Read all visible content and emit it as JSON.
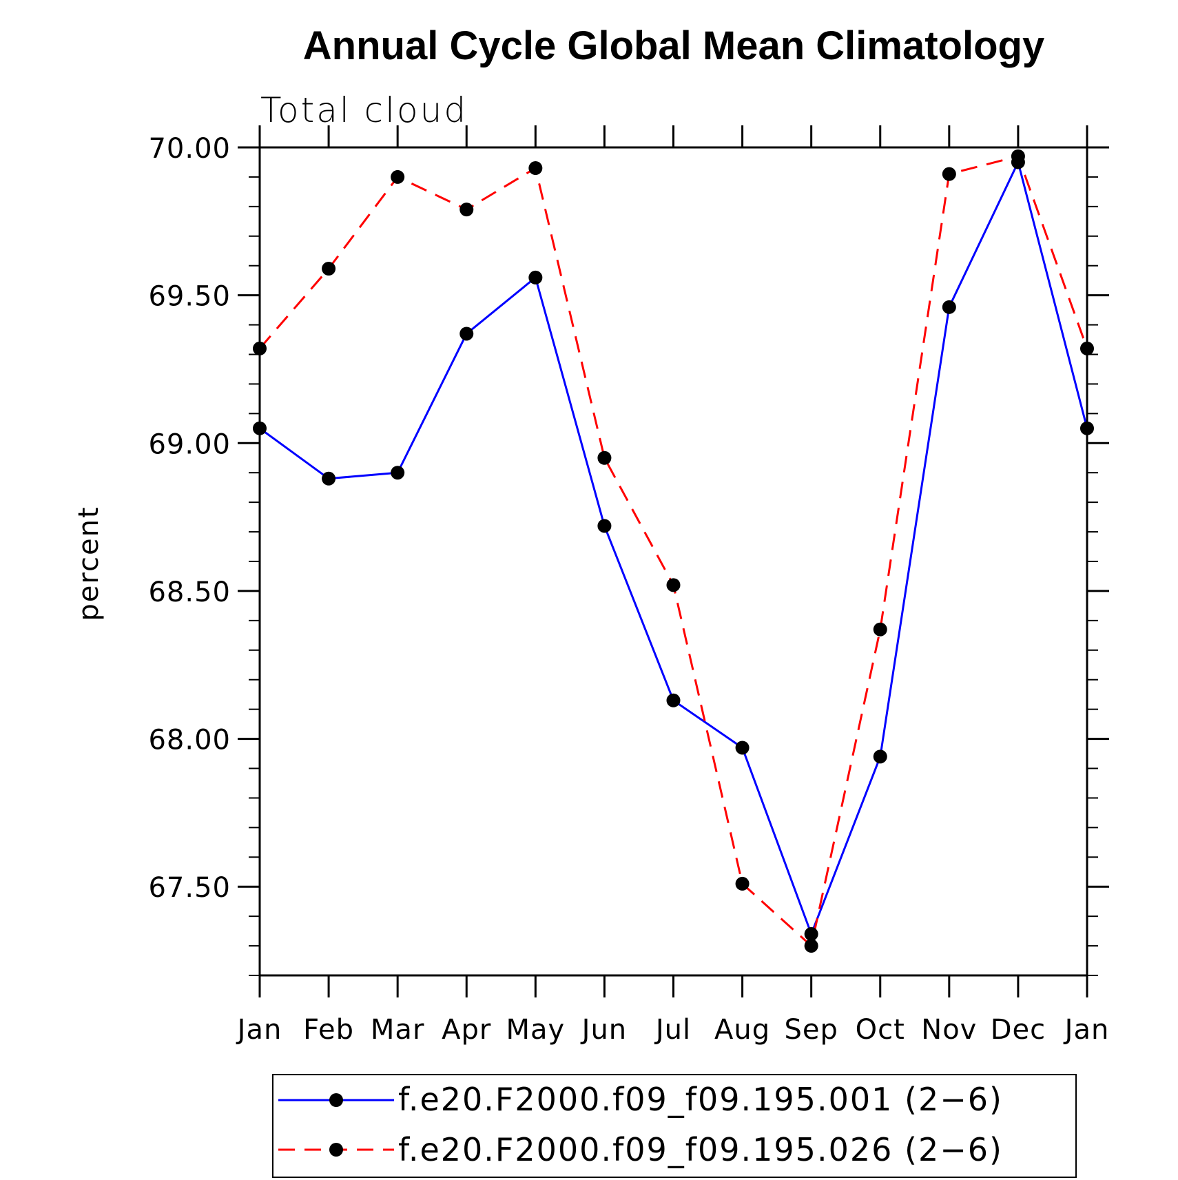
{
  "chart_data": {
    "type": "line",
    "title": "Annual Cycle Global Mean Climatology",
    "subtitle": "Total cloud",
    "xlabel": "",
    "ylabel": "percent",
    "categories": [
      "Jan",
      "Feb",
      "Mar",
      "Apr",
      "May",
      "Jun",
      "Jul",
      "Aug",
      "Sep",
      "Oct",
      "Nov",
      "Dec",
      "Jan"
    ],
    "ylim": [
      67.2,
      70.0
    ],
    "yticks": [
      "70.00",
      "69.50",
      "69.00",
      "68.50",
      "68.00",
      "67.50"
    ],
    "ytick_values": [
      70.0,
      69.5,
      69.0,
      68.5,
      68.0,
      67.5
    ],
    "grid": false,
    "legend_position": "bottom",
    "series": [
      {
        "name": "f.e20.F2000.f09_f09.195.001 (2−6)",
        "color": "#0000ff",
        "dash": "solid",
        "marker": "filled-circle",
        "values": [
          69.05,
          68.88,
          68.9,
          69.37,
          69.56,
          68.72,
          68.13,
          67.97,
          67.34,
          67.94,
          69.46,
          69.95,
          69.05
        ]
      },
      {
        "name": "f.e20.F2000.f09_f09.195.026 (2−6)",
        "color": "#ff0000",
        "dash": "dashed",
        "marker": "filled-circle",
        "values": [
          69.32,
          69.59,
          69.9,
          69.79,
          69.93,
          68.95,
          68.52,
          67.51,
          67.3,
          68.37,
          69.91,
          69.97,
          69.32
        ]
      }
    ]
  }
}
